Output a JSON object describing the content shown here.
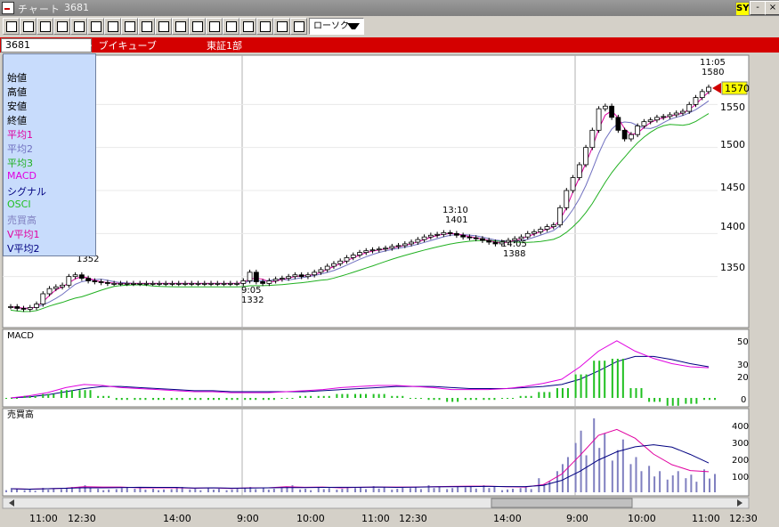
{
  "window": {
    "title": "チャート",
    "code": "3681",
    "sys_badge": "SY"
  },
  "window_buttons": [
    "-",
    "×"
  ],
  "toolbar": {
    "chart_type": "ローソク"
  },
  "infobar": {
    "code": "3681",
    "name": "・ ブイキューブ",
    "market": "東証1部"
  },
  "legend": [
    {
      "label": "始値",
      "color": "#000000"
    },
    {
      "label": "高値",
      "color": "#000000"
    },
    {
      "label": "安値",
      "color": "#000000"
    },
    {
      "label": "終値",
      "color": "#000000"
    },
    {
      "label": "平均1",
      "color": "#e000a0"
    },
    {
      "label": "平均2",
      "color": "#7070c0"
    },
    {
      "label": "平均3",
      "color": "#20b020"
    },
    {
      "label": "MACD",
      "color": "#e000e0"
    },
    {
      "label": "シグナル",
      "color": "#000080"
    },
    {
      "label": "OSCI",
      "color": "#20c020"
    },
    {
      "label": "売買高",
      "color": "#8080c0"
    },
    {
      "label": "V平均1",
      "color": "#e000a0"
    },
    {
      "label": "V平均2",
      "color": "#000080"
    }
  ],
  "price_axis": {
    "ticks": [
      "1550",
      "1500",
      "1450",
      "1400",
      "1350"
    ],
    "current": "1570"
  },
  "annotations": [
    {
      "time": "11:05",
      "price": "1580"
    },
    {
      "time": "13:10",
      "price": "1401"
    },
    {
      "time": "14:05",
      "price": "1388"
    },
    {
      "time": "9:05",
      "price": "1332"
    },
    {
      "price": "1352"
    }
  ],
  "macd_panel": {
    "title": "MACD",
    "ticks": [
      "50",
      "30",
      "20",
      "0"
    ]
  },
  "volume_panel": {
    "title": "売買高",
    "ticks": [
      "400",
      "300",
      "200",
      "100"
    ]
  },
  "x_axis": {
    "ticks": [
      "11:00",
      "12:30",
      "14:00",
      "9:00",
      "10:00",
      "11:00",
      "12:30",
      "14:00",
      "9:00",
      "10:00",
      "11:00",
      "12:30"
    ]
  },
  "chart_data": {
    "type": "candlestick",
    "price_series": [
      1315,
      1313,
      1312,
      1314,
      1318,
      1330,
      1336,
      1338,
      1340,
      1350,
      1352,
      1348,
      1345,
      1344,
      1343,
      1342,
      1342,
      1342,
      1342,
      1342,
      1342,
      1342,
      1342,
      1342,
      1342,
      1342,
      1342,
      1342,
      1342,
      1342,
      1342,
      1342,
      1342,
      1342,
      1342,
      1342,
      1345,
      1355,
      1344,
      1342,
      1345,
      1347,
      1348,
      1350,
      1352,
      1350,
      1352,
      1355,
      1358,
      1362,
      1365,
      1368,
      1372,
      1375,
      1378,
      1380,
      1381,
      1382,
      1383,
      1385,
      1386,
      1388,
      1390,
      1393,
      1396,
      1398,
      1399,
      1401,
      1400,
      1398,
      1396,
      1395,
      1394,
      1392,
      1390,
      1388,
      1390,
      1392,
      1394,
      1396,
      1400,
      1402,
      1405,
      1408,
      1410,
      1430,
      1450,
      1465,
      1480,
      1500,
      1520,
      1545,
      1548,
      1535,
      1520,
      1510,
      1515,
      1525,
      1530,
      1532,
      1535,
      1536,
      1538,
      1540,
      1542,
      1550,
      1558,
      1565,
      1570
    ],
    "macd": [
      0,
      2,
      5,
      10,
      13,
      12,
      10,
      9,
      8,
      7,
      6,
      6,
      5,
      5,
      5,
      6,
      7,
      8,
      10,
      11,
      12,
      12,
      11,
      10,
      8,
      8,
      8,
      9,
      11,
      14,
      18,
      30,
      45,
      55,
      45,
      38,
      33,
      30,
      29
    ],
    "signal": [
      0,
      1,
      3,
      6,
      9,
      11,
      11,
      10,
      9,
      8,
      7,
      7,
      6,
      6,
      6,
      6,
      6,
      7,
      8,
      9,
      10,
      11,
      11,
      11,
      10,
      9,
      9,
      9,
      10,
      11,
      13,
      18,
      26,
      35,
      40,
      40,
      37,
      33,
      30
    ],
    "volume": [
      20,
      15,
      25,
      30,
      40,
      20,
      30,
      25,
      20,
      30,
      20,
      25,
      20,
      30,
      25,
      40,
      20,
      30,
      25,
      30,
      35,
      25,
      30,
      40,
      30,
      35,
      40,
      20,
      30,
      80,
      200,
      350,
      420,
      300,
      200,
      150,
      120,
      100,
      130
    ]
  }
}
